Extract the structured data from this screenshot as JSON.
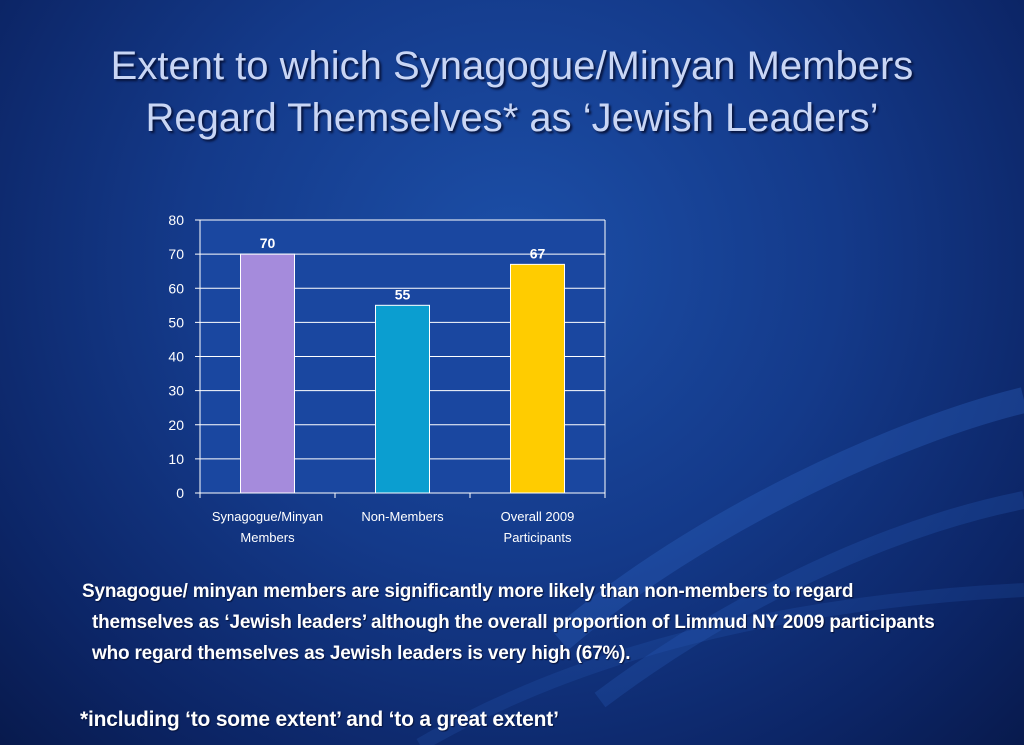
{
  "slide": {
    "title_line1": "Extent to which Synagogue/Minyan Members",
    "title_line2": "Regard Themselves* as ‘Jewish Leaders’",
    "body": "Synagogue/ minyan members are significantly more likely than non-members to regard themselves as ‘Jewish leaders’ although the overall proportion of Limmud NY 2009 participants who regard themselves as Jewish leaders is very high (67%).",
    "footnote": "*including ‘to some extent’ and ‘to a great extent’"
  },
  "chart_data": {
    "type": "bar",
    "categories": [
      [
        "Synagogue/Minyan",
        "Members"
      ],
      [
        "Non-Members"
      ],
      [
        "Overall 2009",
        "Participants"
      ]
    ],
    "values": [
      70,
      55,
      67
    ],
    "data_labels": [
      "70",
      "55",
      "67"
    ],
    "bar_colors": [
      "#a58bdc",
      "#0b9ed0",
      "#ffcc00"
    ],
    "ylim": [
      0,
      80
    ],
    "yticks": [
      0,
      10,
      20,
      30,
      40,
      50,
      60,
      70,
      80
    ],
    "grid": true,
    "plot_background": "#1a47a0",
    "grid_color": "#ffffff"
  }
}
